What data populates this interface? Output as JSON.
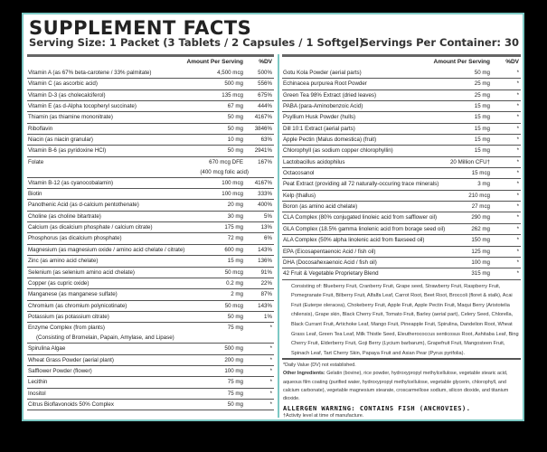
{
  "label": {
    "title": "SUPPLEMENT FACTS",
    "serving_size": "Serving Size: 1 Packet (3 Tablets / 2 Capsules / 1 Softgel)",
    "servings_per_container": "Servings Per Container: 30",
    "colors": {
      "border": "#7cc8c4",
      "background": "#ffffff",
      "outer": "#000000"
    }
  },
  "left_column": {
    "header": {
      "amount": "Amount Per Serving",
      "dv": "%DV"
    },
    "rows": [
      {
        "name": "Vitamin A (as 67% beta-carotene / 33% palmitate)",
        "amount": "4,500 mcg",
        "dv": "500%"
      },
      {
        "name": "Vitamin C (as ascorbic acid)",
        "amount": "500 mg",
        "dv": "556%"
      },
      {
        "name": "Vitamin D-3 (as cholecalciferol)",
        "amount": "135 mcg",
        "dv": "675%"
      },
      {
        "name": "Vitamin E (as d-Alpha tocopheryl succinate)",
        "amount": "67 mg",
        "dv": "444%"
      },
      {
        "name": "Thiamin (as thiamine mononitrate)",
        "amount": "50 mg",
        "dv": "4167%"
      },
      {
        "name": "Riboflavin",
        "amount": "50 mg",
        "dv": "3846%"
      },
      {
        "name": "Niacin (as niacin granular)",
        "amount": "10 mg",
        "dv": "63%"
      },
      {
        "name": "Vitamin B-6 (as pyridoxine HCl)",
        "amount": "50 mg",
        "dv": "2941%"
      },
      {
        "name": "Folate",
        "amount": "670 mcg DFE",
        "dv": "167%",
        "sub_amount": "(400 mcg folic acid)"
      },
      {
        "name": "Vitamin B-12 (as cyanocobalamin)",
        "amount": "100 mcg",
        "dv": "4167%"
      },
      {
        "name": "Biotin",
        "amount": "100 mcg",
        "dv": "333%"
      },
      {
        "name": "Panothenic Acid (as d-calcium pentothenate)",
        "amount": "20 mg",
        "dv": "400%"
      },
      {
        "name": "Choline (as choline bitartrate)",
        "amount": "30 mg",
        "dv": "5%"
      },
      {
        "name": "Calcium (as dicalcium phosphate / calcium citrate)",
        "amount": "175 mg",
        "dv": "13%"
      },
      {
        "name": "Phosphorus (as dicalcium phosphate)",
        "amount": "72 mg",
        "dv": "6%"
      },
      {
        "name": "Magnesium (as magnesium oxide / amino acid chelate / citrate)",
        "amount": "600 mg",
        "dv": "143%"
      },
      {
        "name": "Zinc (as amino acid chelate)",
        "amount": "15 mg",
        "dv": "136%"
      },
      {
        "name": "Selenium (as selenium amino acid chelate)",
        "amount": "50 mcg",
        "dv": "91%"
      },
      {
        "name": "Copper (as cupric oxide)",
        "amount": "0.2 mg",
        "dv": "22%"
      },
      {
        "name": "Manganese (as manganese sulfate)",
        "amount": "2 mg",
        "dv": "87%"
      },
      {
        "name": "Chromium (as chromium polynicotinate)",
        "amount": "50 mcg",
        "dv": "143%"
      },
      {
        "name": "Potassium (as potassium citrate)",
        "amount": "50 mg",
        "dv": "1%"
      },
      {
        "name": "Enzyme Complex (from plants)",
        "amount": "75 mg",
        "dv": "*",
        "sub_name": "(Consisting of Bromelain, Papain, Amylase, and Lipase)"
      },
      {
        "name": "Spirulina Algae",
        "amount": "500 mg",
        "dv": "*"
      },
      {
        "name": "Wheat Grass Powder (aerial plant)",
        "amount": "200 mg",
        "dv": "*"
      },
      {
        "name": "Safflower Powder (flower)",
        "amount": "100 mg",
        "dv": "*"
      },
      {
        "name": "Lecithin",
        "amount": "75 mg",
        "dv": "*"
      },
      {
        "name": "Inositol",
        "amount": "75 mg",
        "dv": "*"
      },
      {
        "name": "Citrus Bioflavonoids 50% Complex",
        "amount": "50 mg",
        "dv": "*"
      }
    ]
  },
  "right_column": {
    "header": {
      "amount": "Amount Per Serving",
      "dv": "%DV"
    },
    "rows": [
      {
        "name": "Gotu Kola Powder (aerial parts)",
        "amount": "50 mg",
        "dv": "*"
      },
      {
        "name": "Echinacea purpurea Root Powder",
        "amount": "25 mg",
        "dv": "*"
      },
      {
        "name": "Green Tea 98% Extract (dried leaves)",
        "amount": "25 mg",
        "dv": "*"
      },
      {
        "name": "PABA (para-Aminobenzoic Acid)",
        "amount": "15 mg",
        "dv": "*"
      },
      {
        "name": "Psyllium Husk Powder (hulls)",
        "amount": "15 mg",
        "dv": "*"
      },
      {
        "name": "Dill 10:1 Extract (aerial parts)",
        "amount": "15 mg",
        "dv": "*"
      },
      {
        "name": "Apple Pectin (Malus domestica) (fruit)",
        "amount": "15 mg",
        "dv": "*"
      },
      {
        "name": "Chlorophyll (as sodium copper chlorophyllin)",
        "amount": "15 mg",
        "dv": "*"
      },
      {
        "name": "Lactobacillus acidophilus",
        "amount": "20 Million CFU†",
        "dv": "*"
      },
      {
        "name": "Octacosanol",
        "amount": "15 mcg",
        "dv": "*"
      },
      {
        "name": "Peat Extract (providing all 72 naturally-occuring trace minerals)",
        "amount": "3 mg",
        "dv": "*"
      },
      {
        "name": "Kelp (thallus)",
        "amount": "210 mcg",
        "dv": "*"
      },
      {
        "name": "Boron (as amino acid chelate)",
        "amount": "27 mcg",
        "dv": "*"
      },
      {
        "name": "CLA Complex (80% conjugated linoleic acid from safflower oil)",
        "amount": "290 mg",
        "dv": "*"
      },
      {
        "name": "GLA Complex (18.5% gamma linolenic acid from borage seed oil)",
        "amount": "262 mg",
        "dv": "*"
      },
      {
        "name": "ALA Complex (50% alpha linolenic acid from flaxseed oil)",
        "amount": "150 mg",
        "dv": "*"
      },
      {
        "name": "EPA (Eicosapentaenoic Acid / fish oil)",
        "amount": "125 mg",
        "dv": "*"
      },
      {
        "name": "DHA (Docosahexaenoic Acid / fish oil)",
        "amount": "100 mg",
        "dv": "*"
      },
      {
        "name": "42 Fruit & Vegetable Proprietary Blend",
        "amount": "315 mg",
        "dv": "*"
      }
    ],
    "blend_description": "Consisting of: Blueberry Fruit, Cranberry Fruit, Grape seed, Strawberry Fruit, Raspberry Fruit, Pomegranate Fruit, Bilberry Fruit, Alfalfa Leaf, Carrot Root, Beet Root, Broccoli (floret & stalk), Acai Fruit (Euterpe oleracea), Chokeberry Fruit, Apple Fruit, Apple Pectin Fruit, Maqui Berry (Aristotelia chilensis), Grape skin, Black Cherry Fruit, Tomato Fruit, Barley (aerial part), Celery Seed, Chlorella, Black Currant Fruit, Artichoke Leaf, Mango Fruit, Pineapple Fruit, Spirulina, Dandelion Root, Wheat Grass Leaf, Green Tea Leaf, Milk Thistle Seed, Eleutherococcus senticosus Root, Ashitaba Leaf, Bing Cherry Fruit, Elderberry Fruit, Goji Berry (Lycium barbarum), Grapefruit Fruit, Mangosteen Fruit, Spinach Leaf, Tart Cherry Skin, Papaya Fruit and Asian Pear (Pyrus pyrifolia).",
    "daily_value_note": "*Daily Value (DV) not established.",
    "other_ingredients_label": "Other Ingredients:",
    "other_ingredients": "Gelatin (bovine), rice powder, hydroxypropyl methylcellulose, vegetable stearic acid, aqueous film coating (purified water, hydroxypropyl methylcellulose, vegetable glycerin, chlorophyll, and calcium carbonate), vegetable magnesium stearate, croscarmellose sodium, silicon dioxide, and titanium dioxide.",
    "allergen_warning": "ALLERGEN WARNING: CONTAINS FISH (ANCHOVIES).",
    "cfu_note": "†Activity level at time of manufacture."
  }
}
